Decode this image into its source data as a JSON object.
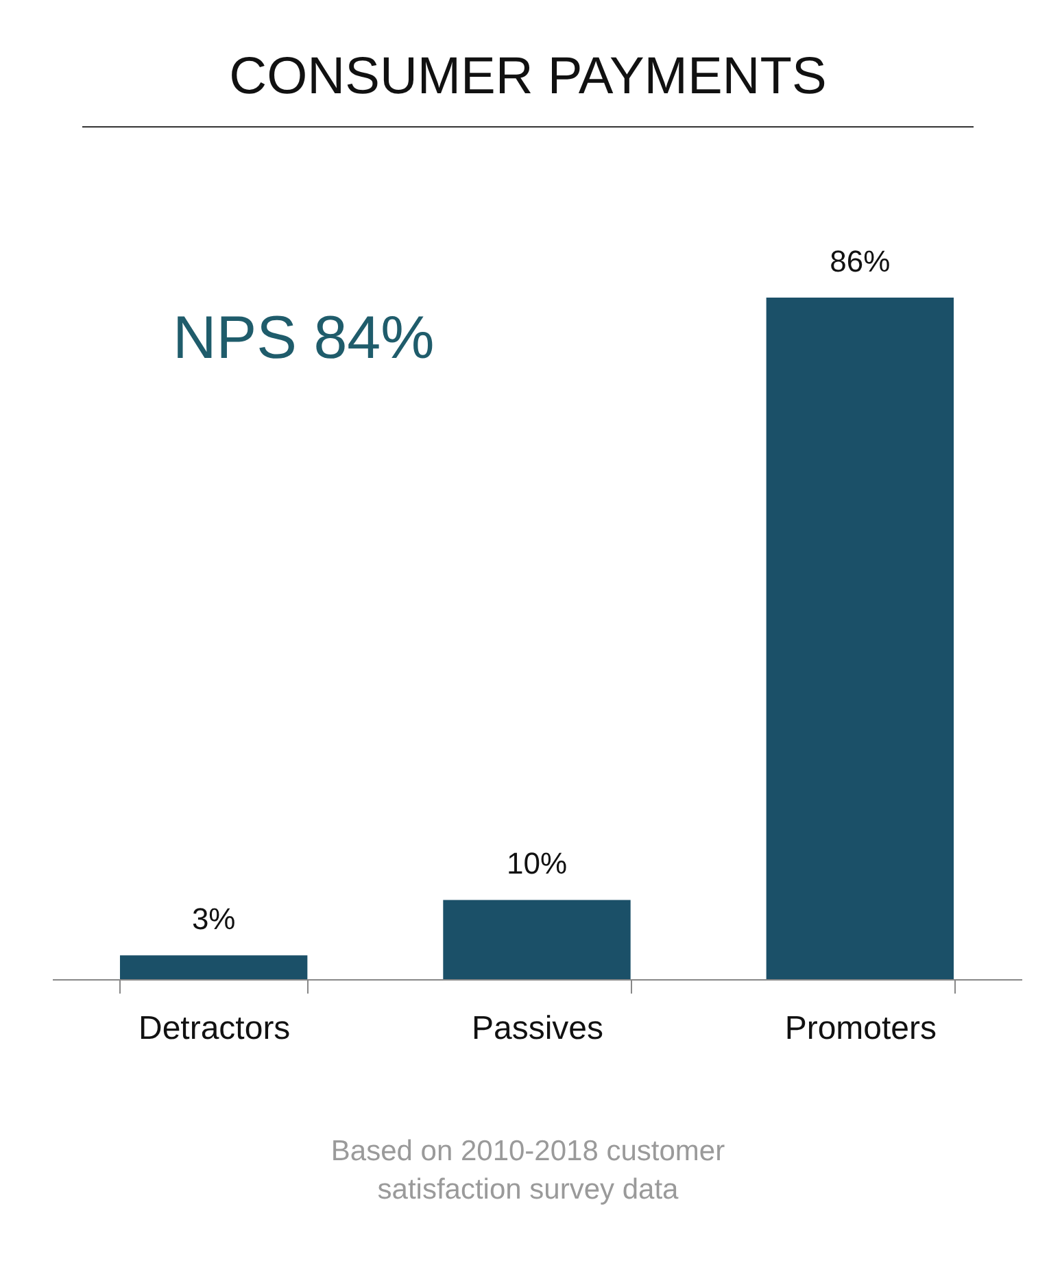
{
  "chart_data": {
    "type": "bar",
    "title": "CONSUMER PAYMENTS",
    "categories": [
      "Detractors",
      "Passives",
      "Promoters"
    ],
    "values": [
      3,
      10,
      86
    ],
    "color": "#1b5068",
    "value_labels": [
      "3%",
      "10%",
      "86%"
    ],
    "annotations": [
      "NPS 84%",
      "Based on 2010-2018 customer satisfaction survey data"
    ],
    "grid": false
  }
}
